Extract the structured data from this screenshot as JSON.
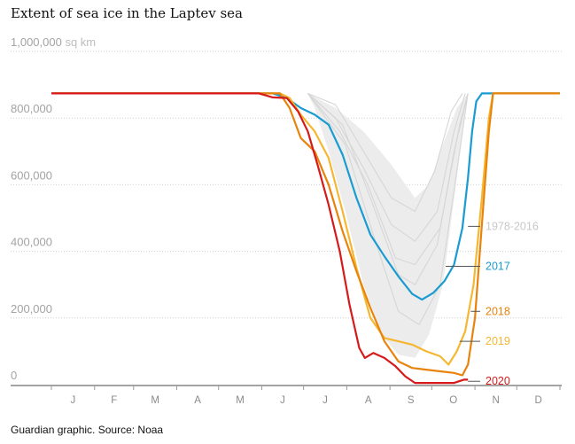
{
  "title": "Extent of sea ice in the Laptev sea",
  "footer": "Guardian graphic. Source: Noaa",
  "chart_data": {
    "type": "line",
    "y_unit": "sq km",
    "ylim": [
      0,
      1000000
    ],
    "yticks": [
      {
        "value": 1000000,
        "label": "1,000,000"
      },
      {
        "value": 800000,
        "label": "800,000"
      },
      {
        "value": 600000,
        "label": "600,000"
      },
      {
        "value": 400000,
        "label": "400,000"
      },
      {
        "value": 200000,
        "label": "200,000"
      },
      {
        "value": 0,
        "label": "0"
      }
    ],
    "xlim": [
      1,
      366
    ],
    "months": [
      "J",
      "F",
      "M",
      "A",
      "M",
      "J",
      "J",
      "A",
      "S",
      "O",
      "N",
      "D"
    ],
    "grid": true,
    "colors": {
      "range": "#d6d6d6",
      "2017": "#1a9bd1",
      "2018": "#e8830c",
      "2019": "#f5b731",
      "2020": "#d61a1a"
    },
    "series": [
      {
        "name": "2017",
        "points": [
          [
            1,
            874000
          ],
          [
            160,
            874000
          ],
          [
            170,
            860000
          ],
          [
            180,
            830000
          ],
          [
            190,
            810000
          ],
          [
            200,
            780000
          ],
          [
            210,
            690000
          ],
          [
            220,
            560000
          ],
          [
            230,
            450000
          ],
          [
            240,
            385000
          ],
          [
            250,
            325000
          ],
          [
            260,
            272000
          ],
          [
            267,
            255000
          ],
          [
            275,
            275000
          ],
          [
            283,
            310000
          ],
          [
            290,
            360000
          ],
          [
            296,
            470000
          ],
          [
            300,
            620000
          ],
          [
            303,
            760000
          ],
          [
            306,
            850000
          ],
          [
            310,
            874000
          ],
          [
            366,
            874000
          ]
        ]
      },
      {
        "name": "2018",
        "points": [
          [
            1,
            874000
          ],
          [
            165,
            874000
          ],
          [
            172,
            830000
          ],
          [
            180,
            740000
          ],
          [
            190,
            700000
          ],
          [
            200,
            600000
          ],
          [
            210,
            460000
          ],
          [
            220,
            340000
          ],
          [
            230,
            230000
          ],
          [
            240,
            130000
          ],
          [
            250,
            70000
          ],
          [
            260,
            50000
          ],
          [
            270,
            45000
          ],
          [
            280,
            40000
          ],
          [
            290,
            35000
          ],
          [
            296,
            28000
          ],
          [
            300,
            60000
          ],
          [
            305,
            200000
          ],
          [
            310,
            480000
          ],
          [
            315,
            760000
          ],
          [
            318,
            874000
          ],
          [
            366,
            874000
          ]
        ]
      },
      {
        "name": "2019",
        "points": [
          [
            1,
            874000
          ],
          [
            165,
            874000
          ],
          [
            172,
            860000
          ],
          [
            180,
            810000
          ],
          [
            190,
            760000
          ],
          [
            200,
            680000
          ],
          [
            210,
            520000
          ],
          [
            220,
            350000
          ],
          [
            230,
            200000
          ],
          [
            240,
            140000
          ],
          [
            250,
            130000
          ],
          [
            260,
            120000
          ],
          [
            270,
            100000
          ],
          [
            280,
            85000
          ],
          [
            286,
            60000
          ],
          [
            292,
            100000
          ],
          [
            298,
            160000
          ],
          [
            304,
            300000
          ],
          [
            310,
            560000
          ],
          [
            315,
            800000
          ],
          [
            318,
            874000
          ],
          [
            366,
            874000
          ]
        ]
      },
      {
        "name": "2020",
        "points": [
          [
            1,
            874000
          ],
          [
            150,
            874000
          ],
          [
            160,
            862000
          ],
          [
            170,
            860000
          ],
          [
            178,
            820000
          ],
          [
            185,
            760000
          ],
          [
            192,
            660000
          ],
          [
            200,
            540000
          ],
          [
            208,
            400000
          ],
          [
            215,
            240000
          ],
          [
            222,
            110000
          ],
          [
            226,
            80000
          ],
          [
            232,
            95000
          ],
          [
            240,
            80000
          ],
          [
            248,
            55000
          ],
          [
            255,
            25000
          ],
          [
            262,
            5000
          ],
          [
            280,
            5000
          ],
          [
            290,
            5000
          ],
          [
            297,
            15000
          ],
          [
            300,
            15000
          ]
        ]
      }
    ],
    "range_label": "1978-2016",
    "annotations": [
      {
        "label": "1978-2016",
        "x": 300,
        "y": 475000
      },
      {
        "label": "2017",
        "x": 284,
        "y": 355000
      },
      {
        "label": "2018",
        "x": 302,
        "y": 220000
      },
      {
        "label": "2019",
        "x": 294,
        "y": 130000
      },
      {
        "label": "2020",
        "x": 300,
        "y": 10000
      }
    ]
  }
}
